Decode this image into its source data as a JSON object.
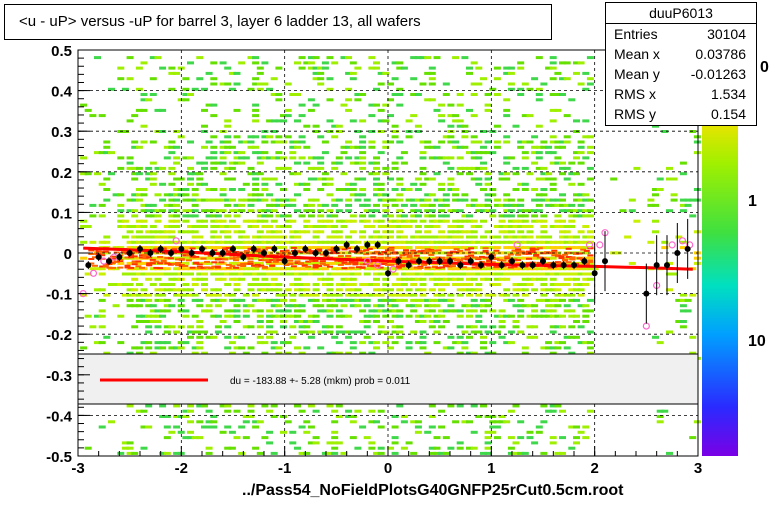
{
  "title": "<u - uP>       versus  -uP for barrel 3, layer 6 ladder 13, all wafers",
  "footer": "../Pass54_NoFieldPlotsG40GNFP25rCut0.5cm.root",
  "stats": {
    "name": "duuP6013",
    "rows": [
      {
        "key": "Entries",
        "value": "30104"
      },
      {
        "key": "Mean x",
        "value": "0.03786"
      },
      {
        "key": "Mean y",
        "value": "-0.01263"
      },
      {
        "key": "RMS x",
        "value": "1.534"
      },
      {
        "key": "RMS y",
        "value": "0.154"
      }
    ]
  },
  "colors": {
    "fit_line": "#ff0000",
    "profile_points": "#000000",
    "open_points": "#ff66cc",
    "legend_fill": "#f0f0f0"
  },
  "chart_data": {
    "type": "heatmap",
    "xlim": [
      -3,
      3
    ],
    "ylim": [
      -0.5,
      0.5
    ],
    "x_ticks": [
      "-3",
      "-2",
      "-1",
      "0",
      "1",
      "2",
      "3"
    ],
    "y_ticks": [
      "-0.5",
      "-0.4",
      "-0.3",
      "-0.2",
      "-0.1",
      "0",
      "0.1",
      "0.2",
      "0.3",
      "0.4",
      "0.5"
    ],
    "grid": true,
    "colorbar_ticks": [
      "1",
      "10"
    ],
    "colorbar_partial_label": "0",
    "legend_text": "du = -183.88 +-  5.28 (mkm) prob = 0.011",
    "fit_line": {
      "x": [
        -2.95,
        -2.0,
        -1.0,
        0.0,
        1.0,
        2.0,
        2.3,
        2.5,
        2.95
      ],
      "y": [
        0.012,
        0.003,
        -0.01,
        -0.02,
        -0.028,
        -0.033,
        -0.035,
        -0.036,
        -0.04
      ]
    },
    "profile": {
      "x": [
        -2.9,
        -2.8,
        -2.7,
        -2.6,
        -2.5,
        -2.4,
        -2.3,
        -2.2,
        -2.1,
        -2.0,
        -1.9,
        -1.8,
        -1.7,
        -1.6,
        -1.5,
        -1.4,
        -1.3,
        -1.2,
        -1.1,
        -1.0,
        -0.9,
        -0.8,
        -0.7,
        -0.6,
        -0.5,
        -0.4,
        -0.3,
        -0.2,
        -0.1,
        0.0,
        0.1,
        0.2,
        0.3,
        0.4,
        0.5,
        0.6,
        0.7,
        0.8,
        0.9,
        1.0,
        1.1,
        1.2,
        1.3,
        1.4,
        1.5,
        1.6,
        1.7,
        1.8,
        1.9,
        2.0,
        2.1,
        2.5,
        2.6,
        2.7,
        2.8,
        2.9
      ],
      "y": [
        -0.03,
        -0.01,
        -0.02,
        -0.01,
        0.0,
        0.01,
        0.0,
        0.01,
        0.0,
        0.01,
        0.0,
        0.01,
        0.0,
        0.0,
        0.01,
        -0.01,
        0.01,
        0.0,
        0.01,
        -0.02,
        0.0,
        0.01,
        0.0,
        0.0,
        0.01,
        0.02,
        0.01,
        0.02,
        0.02,
        -0.05,
        -0.02,
        -0.03,
        -0.02,
        -0.02,
        -0.02,
        -0.02,
        -0.03,
        -0.02,
        -0.03,
        -0.01,
        -0.03,
        -0.02,
        -0.03,
        -0.03,
        -0.02,
        -0.03,
        -0.03,
        -0.03,
        -0.02,
        -0.05,
        -0.02,
        -0.1,
        -0.03,
        -0.03,
        0.0,
        0.01
      ]
    },
    "open_points": {
      "x": [
        -2.95,
        -2.85,
        -2.75,
        -2.65,
        -2.05,
        -0.2,
        -0.1,
        0.05,
        1.25,
        1.95,
        2.05,
        2.1,
        2.5,
        2.6,
        2.75,
        2.85,
        2.92
      ],
      "y": [
        -0.1,
        -0.05,
        -0.02,
        -0.01,
        0.03,
        -0.02,
        -0.03,
        -0.04,
        0.02,
        0.02,
        0.02,
        0.05,
        -0.18,
        -0.08,
        0.02,
        0.03,
        0.02
      ]
    }
  }
}
